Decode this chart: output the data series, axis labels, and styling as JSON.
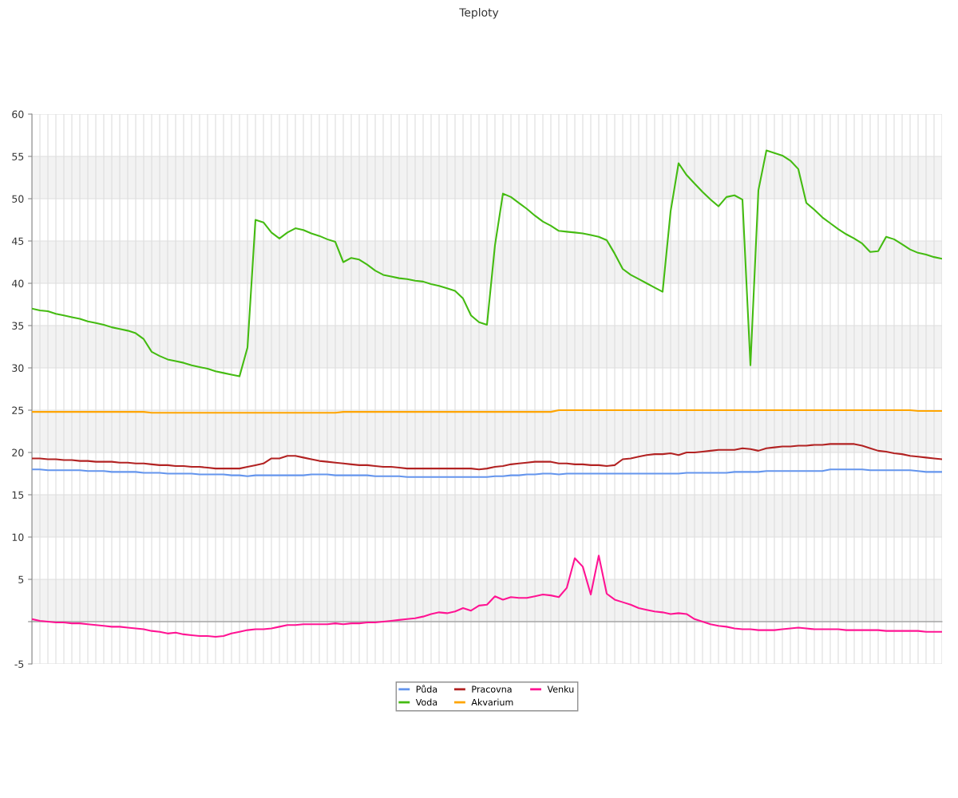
{
  "chart_data": {
    "type": "line",
    "title": "Teploty",
    "categories": [
      null,
      null,
      null,
      null,
      null,
      null,
      null,
      null,
      null,
      null,
      null,
      null,
      null,
      null,
      null,
      null,
      null,
      null,
      null,
      null,
      null,
      null,
      null,
      null,
      null,
      null,
      null,
      null,
      null,
      null,
      null,
      null,
      null,
      null,
      null,
      null,
      null,
      null,
      null,
      null,
      null,
      null,
      null,
      null,
      null,
      null,
      null,
      null,
      null,
      null,
      null,
      null,
      null,
      null,
      null,
      null,
      null,
      null,
      null,
      null,
      null,
      null,
      null,
      null,
      null,
      null,
      null,
      null,
      null,
      null,
      null,
      null,
      null,
      null,
      null,
      null,
      null,
      null,
      null,
      null,
      null,
      null,
      null,
      null,
      null,
      null,
      null,
      null,
      null,
      null,
      null,
      null,
      null,
      null,
      null,
      null,
      null,
      null,
      null,
      null,
      null,
      null,
      null,
      null,
      null,
      null,
      null,
      null,
      null,
      null,
      null,
      null,
      null,
      null,
      null
    ],
    "series": [
      {
        "name": "Půda",
        "color": "#6495ed",
        "values": [
          18.0,
          18.0,
          17.9,
          17.9,
          17.9,
          17.9,
          17.9,
          17.8,
          17.8,
          17.8,
          17.7,
          17.7,
          17.7,
          17.7,
          17.6,
          17.6,
          17.6,
          17.5,
          17.5,
          17.5,
          17.5,
          17.4,
          17.4,
          17.4,
          17.4,
          17.3,
          17.3,
          17.2,
          17.3,
          17.3,
          17.3,
          17.3,
          17.3,
          17.3,
          17.3,
          17.4,
          17.4,
          17.4,
          17.3,
          17.3,
          17.3,
          17.3,
          17.3,
          17.2,
          17.2,
          17.2,
          17.2,
          17.1,
          17.1,
          17.1,
          17.1,
          17.1,
          17.1,
          17.1,
          17.1,
          17.1,
          17.1,
          17.1,
          17.2,
          17.2,
          17.3,
          17.3,
          17.4,
          17.4,
          17.5,
          17.5,
          17.4,
          17.5,
          17.5,
          17.5,
          17.5,
          17.5,
          17.5,
          17.5,
          17.5,
          17.5,
          17.5,
          17.5,
          17.5,
          17.5,
          17.5,
          17.5,
          17.6,
          17.6,
          17.6,
          17.6,
          17.6,
          17.6,
          17.7,
          17.7,
          17.7,
          17.7,
          17.8,
          17.8,
          17.8,
          17.8,
          17.8,
          17.8,
          17.8,
          17.8,
          18.0,
          18.0,
          18.0,
          18.0,
          18.0,
          17.9,
          17.9,
          17.9,
          17.9,
          17.9,
          17.9,
          17.8,
          17.7,
          17.7,
          17.7
        ]
      },
      {
        "name": "Voda",
        "color": "#44bb11",
        "values": [
          37.0,
          36.8,
          36.7,
          36.4,
          36.2,
          36.0,
          35.8,
          35.5,
          35.3,
          35.1,
          34.8,
          34.6,
          34.4,
          34.1,
          33.4,
          31.9,
          31.4,
          31.0,
          30.8,
          30.6,
          30.3,
          30.1,
          29.9,
          29.6,
          29.4,
          29.2,
          29.0,
          32.4,
          47.5,
          47.2,
          46.0,
          45.3,
          46.0,
          46.5,
          46.3,
          45.9,
          45.6,
          45.2,
          44.9,
          42.5,
          43.0,
          42.8,
          42.2,
          41.5,
          41.0,
          40.8,
          40.6,
          40.5,
          40.3,
          40.2,
          39.9,
          39.7,
          39.4,
          39.1,
          38.2,
          36.2,
          35.4,
          35.1,
          44.5,
          50.6,
          50.2,
          49.5,
          48.8,
          48.0,
          47.3,
          46.8,
          46.2,
          46.1,
          46.0,
          45.9,
          45.7,
          45.5,
          45.1,
          43.5,
          41.7,
          41.0,
          40.5,
          40.0,
          39.5,
          39.0,
          48.5,
          54.2,
          52.8,
          51.8,
          50.8,
          49.9,
          49.1,
          50.2,
          50.4,
          49.9,
          30.3,
          51.0,
          55.7,
          55.4,
          55.1,
          54.5,
          53.5,
          49.5,
          48.7,
          47.8,
          47.1,
          46.4,
          45.8,
          45.3,
          44.7,
          43.7,
          43.8,
          45.5,
          45.2,
          44.6,
          44.0,
          43.6,
          43.4,
          43.1,
          42.9
        ]
      },
      {
        "name": "Pracovna",
        "color": "#b22222",
        "values": [
          19.3,
          19.3,
          19.2,
          19.2,
          19.1,
          19.1,
          19.0,
          19.0,
          18.9,
          18.9,
          18.9,
          18.8,
          18.8,
          18.7,
          18.7,
          18.6,
          18.5,
          18.5,
          18.4,
          18.4,
          18.3,
          18.3,
          18.2,
          18.1,
          18.1,
          18.1,
          18.1,
          18.3,
          18.5,
          18.7,
          19.3,
          19.3,
          19.6,
          19.6,
          19.4,
          19.2,
          19.0,
          18.9,
          18.8,
          18.7,
          18.6,
          18.5,
          18.5,
          18.4,
          18.3,
          18.3,
          18.2,
          18.1,
          18.1,
          18.1,
          18.1,
          18.1,
          18.1,
          18.1,
          18.1,
          18.1,
          18.0,
          18.1,
          18.3,
          18.4,
          18.6,
          18.7,
          18.8,
          18.9,
          18.9,
          18.9,
          18.7,
          18.7,
          18.6,
          18.6,
          18.5,
          18.5,
          18.4,
          18.5,
          19.2,
          19.3,
          19.5,
          19.7,
          19.8,
          19.8,
          19.9,
          19.7,
          20.0,
          20.0,
          20.1,
          20.2,
          20.3,
          20.3,
          20.3,
          20.5,
          20.4,
          20.2,
          20.5,
          20.6,
          20.7,
          20.7,
          20.8,
          20.8,
          20.9,
          20.9,
          21.0,
          21.0,
          21.0,
          21.0,
          20.8,
          20.5,
          20.2,
          20.1,
          19.9,
          19.8,
          19.6,
          19.5,
          19.4,
          19.3,
          19.2
        ]
      },
      {
        "name": "Akvarium",
        "color": "#ffa500",
        "values": [
          24.8,
          24.8,
          24.8,
          24.8,
          24.8,
          24.8,
          24.8,
          24.8,
          24.8,
          24.8,
          24.8,
          24.8,
          24.8,
          24.8,
          24.8,
          24.7,
          24.7,
          24.7,
          24.7,
          24.7,
          24.7,
          24.7,
          24.7,
          24.7,
          24.7,
          24.7,
          24.7,
          24.7,
          24.7,
          24.7,
          24.7,
          24.7,
          24.7,
          24.7,
          24.7,
          24.7,
          24.7,
          24.7,
          24.7,
          24.8,
          24.8,
          24.8,
          24.8,
          24.8,
          24.8,
          24.8,
          24.8,
          24.8,
          24.8,
          24.8,
          24.8,
          24.8,
          24.8,
          24.8,
          24.8,
          24.8,
          24.8,
          24.8,
          24.8,
          24.8,
          24.8,
          24.8,
          24.8,
          24.8,
          24.8,
          24.8,
          25.0,
          25.0,
          25.0,
          25.0,
          25.0,
          25.0,
          25.0,
          25.0,
          25.0,
          25.0,
          25.0,
          25.0,
          25.0,
          25.0,
          25.0,
          25.0,
          25.0,
          25.0,
          25.0,
          25.0,
          25.0,
          25.0,
          25.0,
          25.0,
          25.0,
          25.0,
          25.0,
          25.0,
          25.0,
          25.0,
          25.0,
          25.0,
          25.0,
          25.0,
          25.0,
          25.0,
          25.0,
          25.0,
          25.0,
          25.0,
          25.0,
          25.0,
          25.0,
          25.0,
          25.0,
          24.9,
          24.9,
          24.9,
          24.9
        ]
      },
      {
        "name": "Venku",
        "color": "#ff1493",
        "values": [
          0.3,
          0.1,
          0.0,
          -0.1,
          -0.1,
          -0.2,
          -0.2,
          -0.3,
          -0.4,
          -0.5,
          -0.6,
          -0.6,
          -0.7,
          -0.8,
          -0.9,
          -1.1,
          -1.2,
          -1.4,
          -1.3,
          -1.5,
          -1.6,
          -1.7,
          -1.7,
          -1.8,
          -1.7,
          -1.4,
          -1.2,
          -1.0,
          -0.9,
          -0.9,
          -0.8,
          -0.6,
          -0.4,
          -0.4,
          -0.3,
          -0.3,
          -0.3,
          -0.3,
          -0.2,
          -0.3,
          -0.2,
          -0.2,
          -0.1,
          -0.1,
          0.0,
          0.1,
          0.2,
          0.3,
          0.4,
          0.6,
          0.9,
          1.1,
          1.0,
          1.2,
          1.6,
          1.3,
          1.9,
          2.0,
          3.0,
          2.6,
          2.9,
          2.8,
          2.8,
          3.0,
          3.2,
          3.1,
          2.9,
          4.0,
          7.5,
          6.5,
          3.2,
          7.8,
          3.3,
          2.6,
          2.3,
          2.0,
          1.6,
          1.4,
          1.2,
          1.1,
          0.9,
          1.0,
          0.9,
          0.3,
          0.0,
          -0.3,
          -0.5,
          -0.6,
          -0.8,
          -0.9,
          -0.9,
          -1.0,
          -1.0,
          -1.0,
          -0.9,
          -0.8,
          -0.7,
          -0.8,
          -0.9,
          -0.9,
          -0.9,
          -0.9,
          -1.0,
          -1.0,
          -1.0,
          -1.0,
          -1.0,
          -1.1,
          -1.1,
          -1.1,
          -1.1,
          -1.1,
          -1.2,
          -1.2,
          -1.2
        ]
      }
    ],
    "ylim": [
      -5,
      60
    ],
    "yticks": [
      -5,
      {
        "value": 0,
        "label": null
      },
      5,
      10,
      15,
      20,
      25,
      30,
      35,
      40,
      45,
      50,
      55,
      60
    ],
    "bands": [
      {
        "axis": "y",
        "from": 0,
        "to": 5,
        "color": "#f2f2f2"
      },
      {
        "axis": "y",
        "from": 10,
        "to": 15,
        "color": "#f2f2f2"
      },
      {
        "axis": "y",
        "from": 20,
        "to": 25,
        "color": "#f2f2f2"
      },
      {
        "axis": "y",
        "from": 30,
        "to": 35,
        "color": "#f2f2f2"
      },
      {
        "axis": "y",
        "from": 40,
        "to": 45,
        "color": "#f2f2f2"
      },
      {
        "axis": "y",
        "from": 50,
        "to": 55,
        "color": "#f2f2f2"
      }
    ],
    "grid": true,
    "legend": "bottom",
    "marker": "none",
    "line_style": "solid"
  }
}
